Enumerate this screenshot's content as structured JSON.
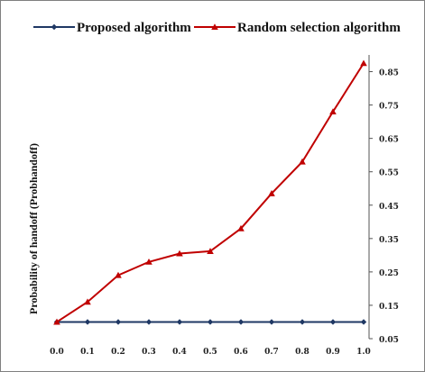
{
  "chart_data": {
    "type": "line",
    "title": "",
    "xlabel": "",
    "ylabel": "Probability of handoff (Probhandoff)",
    "x": [
      0.0,
      0.1,
      0.2,
      0.3,
      0.4,
      0.5,
      0.6,
      0.7,
      0.8,
      0.9,
      1.0
    ],
    "x_tick_labels": [
      "0.0",
      "0.1",
      "0.2",
      "0.3",
      "0.4",
      "0.5",
      "0.6",
      "0.7",
      "0.8",
      "0.9",
      "1.0"
    ],
    "y_tick_values": [
      0.05,
      0.15,
      0.25,
      0.35,
      0.45,
      0.55,
      0.65,
      0.75,
      0.85
    ],
    "y_tick_labels": [
      "0.05",
      "0.15",
      "0.25",
      "0.35",
      "0.45",
      "0.55",
      "0.65",
      "0.75",
      "0.85"
    ],
    "xlim": [
      0.0,
      1.0
    ],
    "ylim": [
      0.05,
      0.9
    ],
    "y_axis_side": "right",
    "grid": false,
    "legend_position": "top",
    "series": [
      {
        "name": "Proposed algorithm",
        "marker": "diamond",
        "color": "#1f3864",
        "values": [
          0.1,
          0.1,
          0.1,
          0.1,
          0.1,
          0.1,
          0.1,
          0.1,
          0.1,
          0.1,
          0.1
        ]
      },
      {
        "name": "Random selection algorithm",
        "marker": "triangle",
        "color": "#c00000",
        "values": [
          0.1,
          0.16,
          0.24,
          0.28,
          0.305,
          0.312,
          0.38,
          0.485,
          0.58,
          0.73,
          0.875
        ]
      }
    ]
  }
}
